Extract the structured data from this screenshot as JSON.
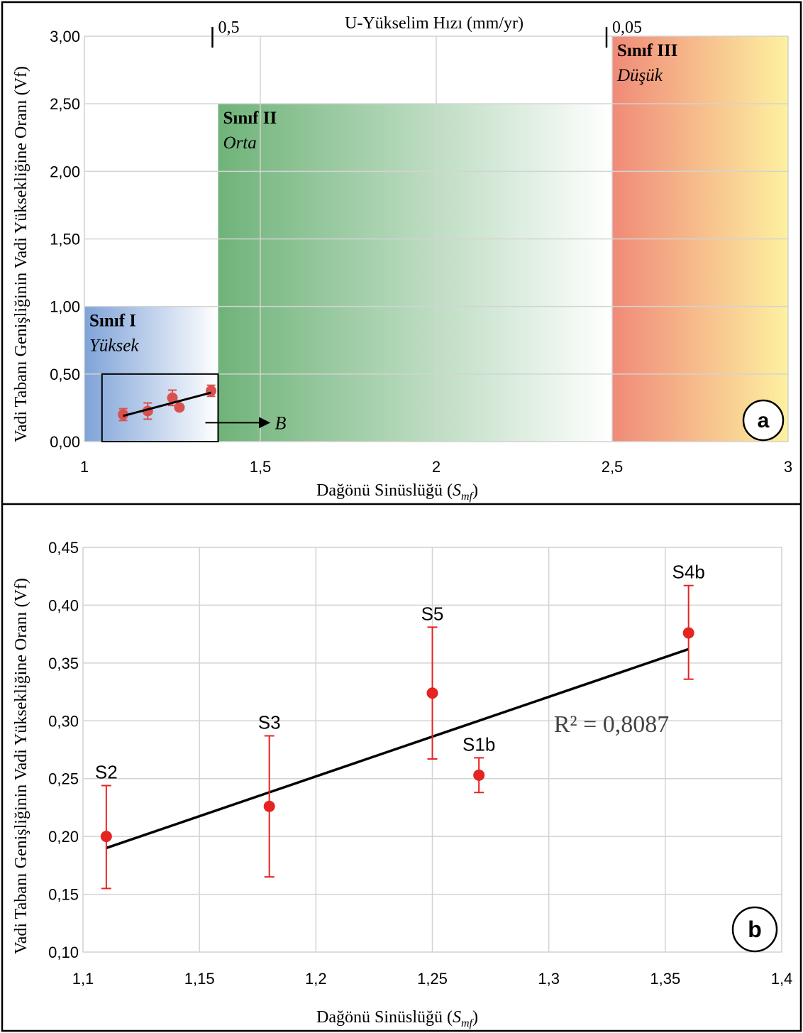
{
  "chart_data": [
    {
      "panel": "a",
      "type": "scatter",
      "panel_label": "a",
      "xlabel": "Dağönü Sinüslüğü (",
      "xlabel_sym": "S",
      "xlabel_sub": "mf",
      "xlabel_close": ")",
      "ylabel": "Vadi Tabanı Genişliğinin Vadi Yüksekliğine Oranı (Vf)",
      "top_axis_label": "U-Yükselim Hızı (mm/yr)",
      "top_ticks": [
        {
          "x": 1.38,
          "label": "0,5"
        },
        {
          "x": 2.5,
          "label": "0,05"
        }
      ],
      "xlim": [
        1,
        3
      ],
      "ylim": [
        0,
        3
      ],
      "x_ticks": [
        {
          "v": 1,
          "label": "1"
        },
        {
          "v": 1.5,
          "label": "1,5"
        },
        {
          "v": 2,
          "label": "2"
        },
        {
          "v": 2.5,
          "label": "2,5"
        },
        {
          "v": 3,
          "label": "3"
        }
      ],
      "y_ticks": [
        {
          "v": 0,
          "label": "0,00"
        },
        {
          "v": 0.5,
          "label": "0,50"
        },
        {
          "v": 1,
          "label": "1,00"
        },
        {
          "v": 1.5,
          "label": "1,50"
        },
        {
          "v": 2,
          "label": "2,00"
        },
        {
          "v": 2.5,
          "label": "2,50"
        },
        {
          "v": 3,
          "label": "3,00"
        }
      ],
      "grid": true,
      "classes": [
        {
          "name": "Sınıf I",
          "desc": "Yüksek",
          "x0": 1,
          "x1": 1.38,
          "y1": 1.0,
          "from": "#7fa3d8",
          "to": "#ffffff"
        },
        {
          "name": "Sınıf II",
          "desc": "Orta",
          "x0": 1.38,
          "x1": 2.5,
          "y1": 2.5,
          "from": "#6fb379",
          "to": "#ffffff"
        },
        {
          "name": "Sınıf III",
          "desc": "Düşük",
          "x0": 2.5,
          "x1": 3,
          "y1": 3.0,
          "from": "#f08a78",
          "to": "#fdf1a0"
        }
      ],
      "inset": {
        "x0": 1.05,
        "x1": 1.38,
        "y0": 0,
        "y1": 0.5,
        "arrow_label": "B"
      },
      "points": [
        {
          "x": 1.11,
          "y": 0.2,
          "err": 0.044
        },
        {
          "x": 1.18,
          "y": 0.226,
          "err": 0.06
        },
        {
          "x": 1.25,
          "y": 0.324,
          "err": 0.057
        },
        {
          "x": 1.27,
          "y": 0.253,
          "err": 0.015
        },
        {
          "x": 1.36,
          "y": 0.376,
          "err": 0.041
        }
      ],
      "trendline": {
        "x": [
          1.11,
          1.36
        ],
        "y": [
          0.19,
          0.362
        ]
      },
      "colors": {
        "point": "#e52421",
        "inset_point": "#d9514e",
        "trend": "#000000"
      }
    },
    {
      "panel": "b",
      "type": "scatter",
      "panel_label": "b",
      "xlabel": "Dağönü Sinüslüğü (",
      "xlabel_sym": "S",
      "xlabel_sub": "mf",
      "xlabel_close": ")",
      "ylabel": "Vadi Tabanı Genişliğinin Vadi Yüksekliğine Oranı (Vf)",
      "xlim": [
        1.1,
        1.4
      ],
      "ylim": [
        0.1,
        0.45
      ],
      "x_ticks": [
        {
          "v": 1.1,
          "label": "1,1"
        },
        {
          "v": 1.15,
          "label": "1,15"
        },
        {
          "v": 1.2,
          "label": "1,2"
        },
        {
          "v": 1.25,
          "label": "1,25"
        },
        {
          "v": 1.3,
          "label": "1,3"
        },
        {
          "v": 1.35,
          "label": "1,35"
        },
        {
          "v": 1.4,
          "label": "1,4"
        }
      ],
      "y_ticks": [
        {
          "v": 0.1,
          "label": "0,10"
        },
        {
          "v": 0.15,
          "label": "0,15"
        },
        {
          "v": 0.2,
          "label": "0,20"
        },
        {
          "v": 0.25,
          "label": "0,25"
        },
        {
          "v": 0.3,
          "label": "0,30"
        },
        {
          "v": 0.35,
          "label": "0,35"
        },
        {
          "v": 0.4,
          "label": "0,40"
        },
        {
          "v": 0.45,
          "label": "0,45"
        }
      ],
      "grid": true,
      "points": [
        {
          "label": "S2",
          "x": 1.11,
          "y": 0.2,
          "err_plus": 0.044,
          "err_minus": 0.045
        },
        {
          "label": "S3",
          "x": 1.18,
          "y": 0.226,
          "err_plus": 0.061,
          "err_minus": 0.061
        },
        {
          "label": "S5",
          "x": 1.25,
          "y": 0.324,
          "err_plus": 0.057,
          "err_minus": 0.057
        },
        {
          "label": "S1b",
          "x": 1.27,
          "y": 0.253,
          "err_plus": 0.015,
          "err_minus": 0.015
        },
        {
          "label": "S4b",
          "x": 1.36,
          "y": 0.376,
          "err_plus": 0.041,
          "err_minus": 0.04
        }
      ],
      "trendline": {
        "x": [
          1.11,
          1.36
        ],
        "y": [
          0.19,
          0.362
        ]
      },
      "r2_label": "R² = 0,8087",
      "colors": {
        "point": "#e52421",
        "trend": "#000000"
      }
    }
  ]
}
